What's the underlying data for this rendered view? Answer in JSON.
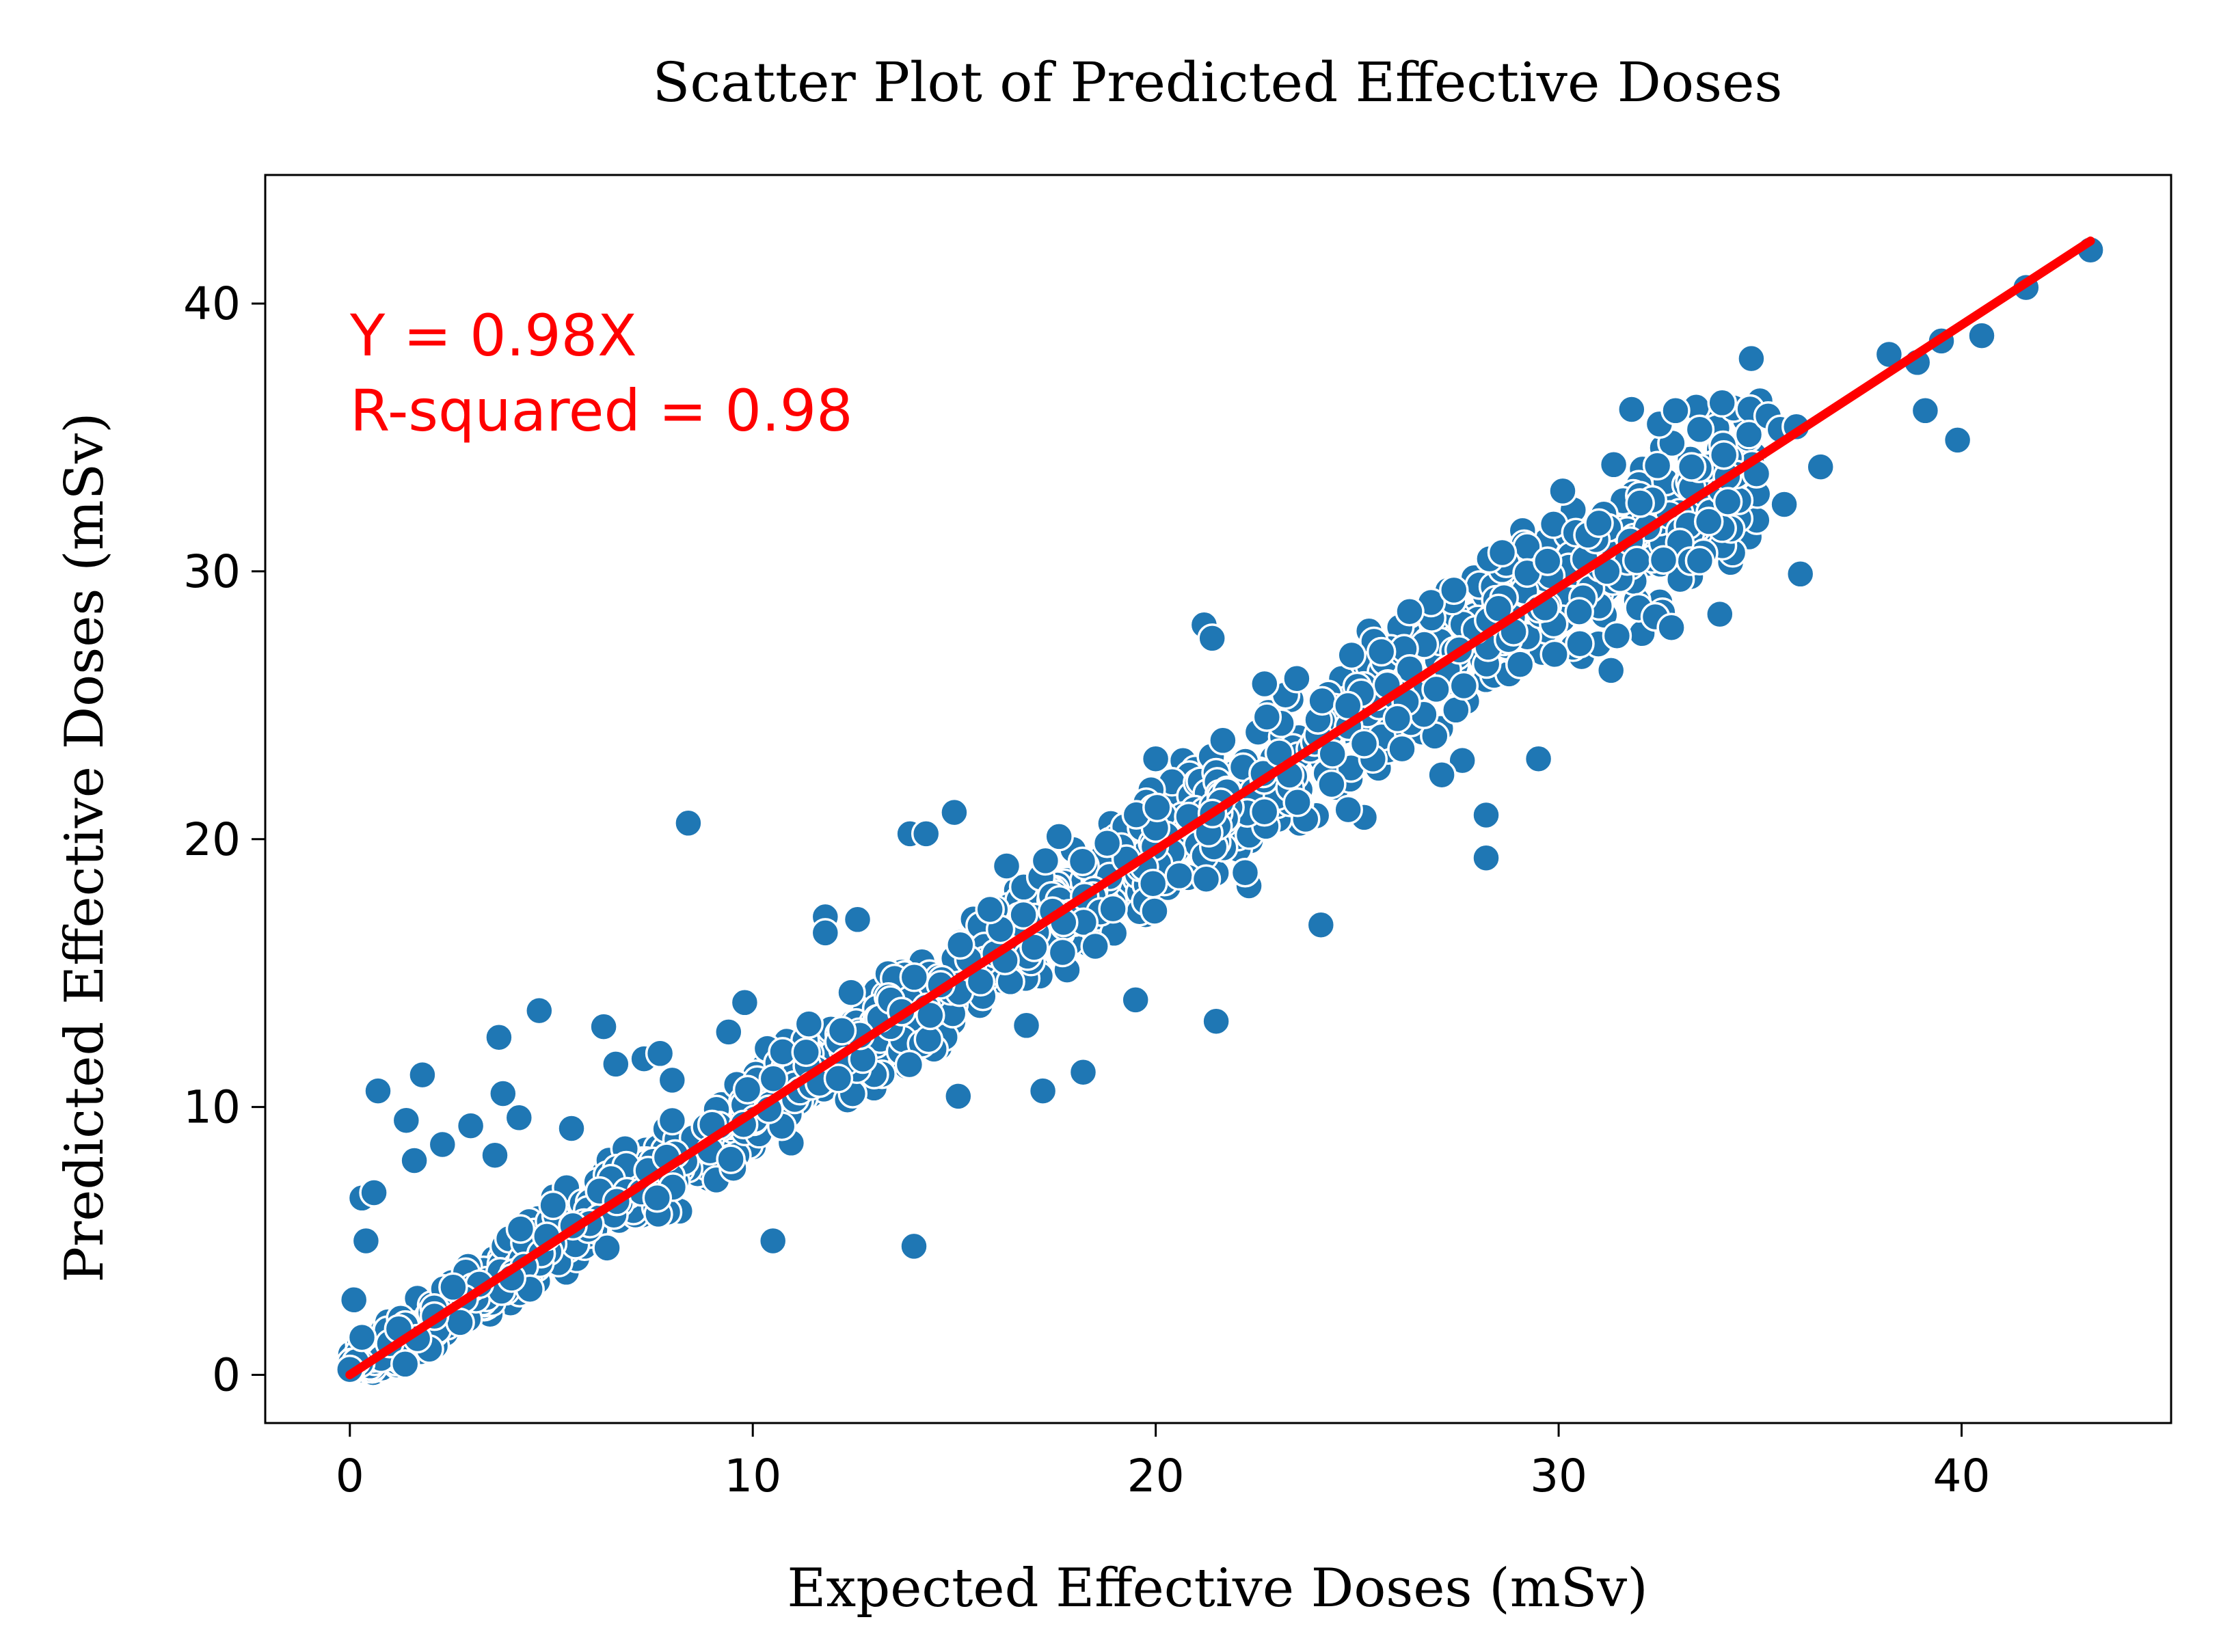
{
  "chart_data": {
    "type": "scatter",
    "title": "Scatter Plot of Predicted Effective Doses",
    "xlabel": "Expected Effective Doses (mSv)",
    "ylabel": "Predicted Effective Doses (mSv)",
    "xlim": [
      -2.1,
      45.2
    ],
    "ylim": [
      -1.8,
      44.8
    ],
    "xticks": [
      0,
      10,
      20,
      30,
      40
    ],
    "yticks": [
      0,
      10,
      20,
      30,
      40
    ],
    "xtick_labels": [
      "0",
      "10",
      "20",
      "30",
      "40"
    ],
    "ytick_labels": [
      "0",
      "10",
      "20",
      "30",
      "40"
    ],
    "grid": false,
    "point_color": "#1f77b4",
    "point_edge_color": "#ffffff",
    "fit_line_color": "#ff0000",
    "fit_line": {
      "slope": 0.98,
      "intercept": 0,
      "x_range": [
        0,
        43.2
      ]
    },
    "annotations": [
      "Y = 0.98X",
      "R-squared = 0.98"
    ],
    "bulk": {
      "n": 1500,
      "seed": 7,
      "slope": 0.98,
      "x_max": 35
    },
    "points": [
      [
        0.7,
        10.6
      ],
      [
        1.8,
        11.2
      ],
      [
        3.7,
        12.6
      ],
      [
        4.7,
        13.6
      ],
      [
        6.3,
        13.0
      ],
      [
        8.4,
        20.6
      ],
      [
        13.9,
        20.2
      ],
      [
        14.3,
        20.2
      ],
      [
        15.0,
        21.0
      ],
      [
        11.8,
        17.1
      ],
      [
        11.8,
        16.5
      ],
      [
        21.2,
        28.0
      ],
      [
        21.4,
        27.5
      ],
      [
        10.5,
        5.0
      ],
      [
        14.0,
        4.8
      ],
      [
        17.2,
        10.6
      ],
      [
        18.2,
        11.3
      ],
      [
        21.5,
        13.2
      ],
      [
        24.1,
        16.8
      ],
      [
        28.2,
        19.3
      ],
      [
        28.2,
        20.9
      ],
      [
        29.5,
        23.0
      ],
      [
        26.3,
        28.5
      ],
      [
        27.1,
        22.4
      ],
      [
        30.1,
        33.0
      ],
      [
        31.0,
        31.8
      ],
      [
        31.3,
        26.3
      ],
      [
        32.4,
        28.3
      ],
      [
        32.8,
        27.9
      ],
      [
        32.5,
        35.5
      ],
      [
        32.9,
        36.0
      ],
      [
        33.5,
        35.3
      ],
      [
        33.3,
        33.9
      ],
      [
        34.0,
        28.4
      ],
      [
        33.5,
        30.4
      ],
      [
        34.2,
        32.6
      ],
      [
        35.2,
        35.8
      ],
      [
        35.5,
        35.3
      ],
      [
        35.9,
        35.4
      ],
      [
        35.6,
        32.5
      ],
      [
        36.0,
        29.9
      ],
      [
        36.5,
        33.9
      ],
      [
        38.2,
        38.1
      ],
      [
        38.9,
        37.8
      ],
      [
        39.1,
        36.0
      ],
      [
        39.5,
        38.6
      ],
      [
        39.9,
        34.9
      ],
      [
        40.5,
        38.8
      ],
      [
        41.6,
        40.6
      ],
      [
        43.2,
        42.0
      ],
      [
        0.3,
        6.6
      ],
      [
        0.6,
        6.8
      ],
      [
        0.4,
        5.0
      ],
      [
        1.4,
        9.5
      ],
      [
        1.6,
        8.0
      ],
      [
        2.3,
        8.6
      ],
      [
        3.0,
        9.3
      ],
      [
        3.6,
        8.2
      ],
      [
        3.8,
        10.5
      ],
      [
        4.2,
        9.6
      ],
      [
        5.5,
        9.2
      ],
      [
        6.6,
        11.6
      ],
      [
        7.3,
        11.8
      ],
      [
        7.7,
        12.0
      ],
      [
        8.0,
        11.0
      ],
      [
        9.4,
        12.8
      ],
      [
        9.8,
        13.9
      ],
      [
        0.0,
        0.2
      ],
      [
        0.3,
        1.4
      ],
      [
        0.1,
        2.8
      ],
      [
        23.5,
        26.0
      ],
      [
        22.7,
        25.8
      ],
      [
        25.6,
        27.0
      ],
      [
        27.4,
        29.3
      ],
      [
        28.6,
        30.7
      ],
      [
        29.9,
        26.9
      ],
      [
        31.2,
        30.0
      ],
      [
        26.0,
        24.5
      ],
      [
        19.5,
        14.0
      ],
      [
        18.5,
        16.0
      ],
      [
        16.3,
        19.0
      ],
      [
        12.6,
        17.0
      ],
      [
        17.6,
        20.1
      ],
      [
        20.0,
        23.0
      ],
      [
        15.1,
        10.4
      ]
    ]
  }
}
